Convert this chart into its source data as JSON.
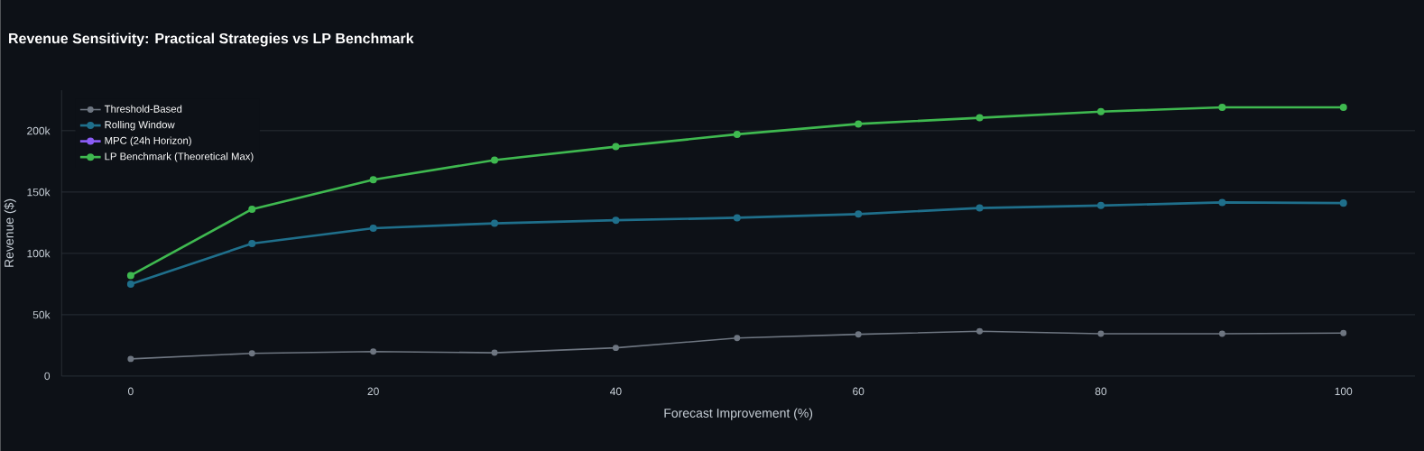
{
  "chart_data": {
    "type": "line",
    "title": "Revenue Sensitivity: Practical Strategies vs LP Benchmark",
    "xlabel": "Forecast Improvement (%)",
    "ylabel": "Revenue ($)",
    "x": [
      0,
      10,
      20,
      30,
      40,
      50,
      60,
      70,
      80,
      90,
      100
    ],
    "series": [
      {
        "name": "Threshold-Based",
        "color": "#6e7681",
        "values": [
          14000,
          18500,
          20000,
          19000,
          23000,
          31000,
          34000,
          36500,
          34500,
          34500,
          35000
        ]
      },
      {
        "name": "Rolling Window",
        "color": "#1f6f8b",
        "values": [
          75000,
          108000,
          120500,
          124500,
          127000,
          129000,
          132000,
          137000,
          139000,
          141500,
          141000
        ]
      },
      {
        "name": "MPC (24h Horizon)",
        "color": "#8b5cf6",
        "values": [
          null,
          null,
          null,
          null,
          null,
          null,
          null,
          null,
          null,
          null,
          null
        ]
      },
      {
        "name": "LP Benchmark (Theoretical Max)",
        "color": "#3fb950",
        "values": [
          82000,
          136000,
          160000,
          176000,
          187000,
          197000,
          205500,
          210500,
          215500,
          219000,
          219000
        ]
      }
    ],
    "xlim": [
      -5.7,
      105.9
    ],
    "ylim": [
      0,
      233000
    ],
    "xticks": [
      0,
      20,
      40,
      60,
      80,
      100
    ],
    "yticks": [
      0,
      {
        "value": 50000,
        "label": "50k"
      },
      {
        "value": 100000,
        "label": "100k"
      },
      {
        "value": 150000,
        "label": "150k"
      },
      {
        "value": 200000,
        "label": "200k"
      }
    ],
    "grid": "y",
    "legend": "top left",
    "marker": "circle",
    "line_style": "solid"
  }
}
